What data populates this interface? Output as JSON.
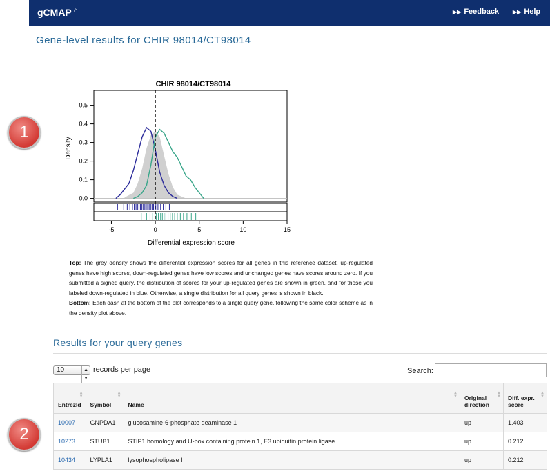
{
  "nav": {
    "brand": "gCMAP",
    "feedback": "Feedback",
    "help": "Help"
  },
  "page": {
    "title": "Gene-level results for CHIR 98014/CT98014"
  },
  "badges": [
    "1",
    "2"
  ],
  "chart_data": {
    "type": "line",
    "title": "CHIR 98014/CT98014",
    "xlabel": "Differential expression score",
    "ylabel": "Density",
    "xlim": [
      -7,
      15
    ],
    "ylim": [
      -0.02,
      0.58
    ],
    "xticks": [
      "-5",
      "0",
      "5",
      "10",
      "15"
    ],
    "yticks": [
      "0.0",
      "0.1",
      "0.2",
      "0.3",
      "0.4",
      "0.5"
    ],
    "vline_x": 0,
    "series": [
      {
        "color": "#c8c8c8",
        "fill": true,
        "x": [
          -3.5,
          -2.5,
          -2,
          -1.5,
          -1,
          -0.5,
          0,
          0.5,
          1,
          1.5,
          2,
          2.5,
          3.5
        ],
        "y": [
          0.005,
          0.03,
          0.08,
          0.16,
          0.27,
          0.34,
          0.36,
          0.33,
          0.23,
          0.13,
          0.06,
          0.02,
          0.0
        ]
      },
      {
        "color": "#2a2a9a",
        "x": [
          -4.5,
          -4,
          -3.5,
          -3,
          -2.5,
          -2,
          -1.5,
          -1,
          -0.5,
          0,
          0.5,
          1,
          1.5,
          2,
          2.5
        ],
        "y": [
          0.0,
          0.02,
          0.05,
          0.08,
          0.15,
          0.24,
          0.33,
          0.38,
          0.36,
          0.26,
          0.14,
          0.07,
          0.03,
          0.01,
          0.0
        ]
      },
      {
        "color": "#3aa68a",
        "x": [
          -2.5,
          -2,
          -1.5,
          -1,
          -0.5,
          0,
          0.5,
          1,
          1.5,
          2,
          2.5,
          3,
          3.5,
          4,
          4.5,
          5,
          5.5
        ],
        "y": [
          0.0,
          0.01,
          0.03,
          0.07,
          0.18,
          0.33,
          0.37,
          0.35,
          0.3,
          0.25,
          0.22,
          0.17,
          0.12,
          0.1,
          0.06,
          0.03,
          0.0
        ]
      }
    ],
    "rug_blue": [
      -4.3,
      -3.6,
      -3.2,
      -2.9,
      -2.6,
      -2.4,
      -2.2,
      -2.0,
      -1.85,
      -1.7,
      -1.55,
      -1.4,
      -1.25,
      -1.1,
      -0.95,
      -0.8,
      -0.65,
      -0.5,
      -0.35,
      -0.2,
      0.05,
      0.3,
      0.6,
      0.9,
      1.2,
      1.6
    ],
    "rug_green": [
      -1.6,
      -1.0,
      -0.6,
      -0.3,
      0.1,
      0.35,
      0.6,
      0.8,
      1.0,
      1.2,
      1.45,
      1.7,
      1.95,
      2.2,
      2.5,
      2.85,
      3.2,
      3.6,
      4.1,
      4.6
    ]
  },
  "description": {
    "top_label": "Top:",
    "top_text": "The grey density shows the differential expression scores for all genes in this reference dataset, up-regulated genes have high scores, down-regulated genes have low scores and unchanged genes have scores around zero. If you submitted a signed query, the distribution of scores for your up-regulated genes are shown in green, and for those you labeled down-regulated in blue. Otherwise, a single distribution for all query genes is shown in black.",
    "bottom_label": "Bottom:",
    "bottom_text": "Each dash at the bottom of the plot corresponds to a single query gene, following the same color scheme as in the density plot above."
  },
  "results": {
    "title": "Results for your query genes",
    "page_size": "10",
    "records_label": "records per page",
    "search_label": "Search:",
    "columns": [
      "EntrezId",
      "Symbol",
      "Name",
      "Original direction",
      "Diff. expr. score"
    ],
    "rows": [
      {
        "id": "10007",
        "symbol": "GNPDA1",
        "name": "glucosamine-6-phosphate deaminase 1",
        "direction": "up",
        "score": "1.403"
      },
      {
        "id": "10273",
        "symbol": "STUB1",
        "name": "STIP1 homology and U-box containing protein 1, E3 ubiquitin protein ligase",
        "direction": "up",
        "score": "0.212"
      },
      {
        "id": "10434",
        "symbol": "LYPLA1",
        "name": "lysophospholipase I",
        "direction": "up",
        "score": "0.212"
      }
    ]
  }
}
